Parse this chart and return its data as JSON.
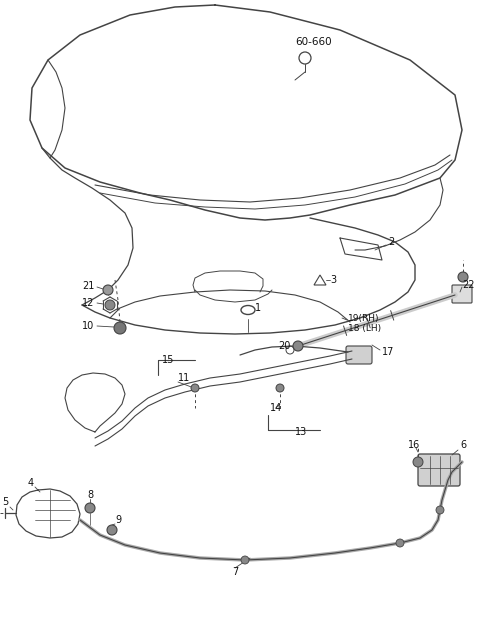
{
  "bg_color": "#ffffff",
  "line_color": "#444444",
  "text_color": "#111111",
  "fig_width": 4.8,
  "fig_height": 6.36,
  "dpi": 100
}
